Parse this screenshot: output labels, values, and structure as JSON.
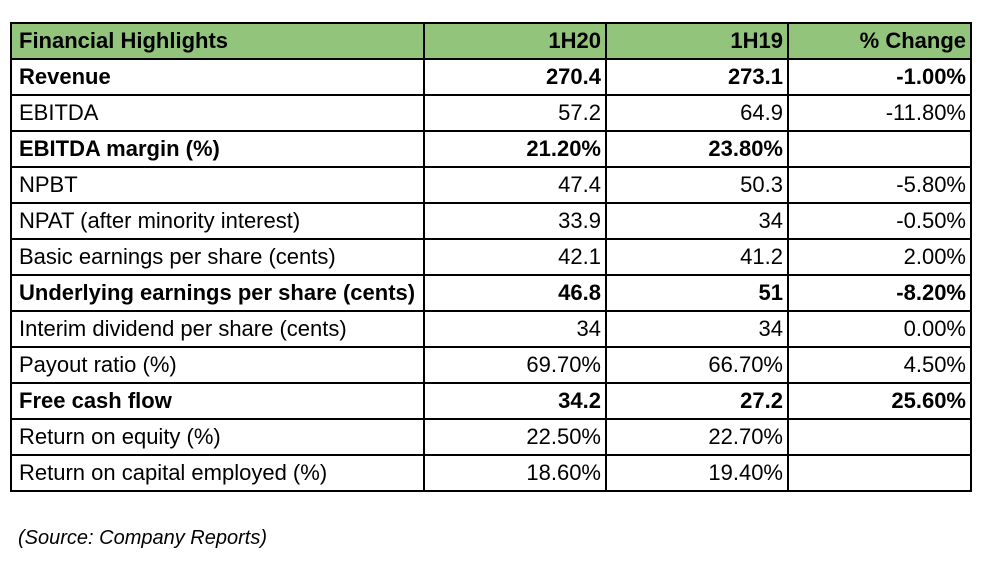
{
  "table": {
    "headers": [
      "Financial Highlights",
      "1H20",
      "1H19",
      "% Change"
    ],
    "header_color": "#92c47c",
    "rows": [
      {
        "label": "Revenue",
        "h20": "270.4",
        "h19": "273.1",
        "change": "-1.00%",
        "bold": true
      },
      {
        "label": "EBITDA",
        "h20": "57.2",
        "h19": "64.9",
        "change": "-11.80%",
        "bold": false
      },
      {
        "label": "EBITDA margin (%)",
        "h20": "21.20%",
        "h19": "23.80%",
        "change": "",
        "bold": true
      },
      {
        "label": "NPBT",
        "h20": "47.4",
        "h19": "50.3",
        "change": "-5.80%",
        "bold": false
      },
      {
        "label": "NPAT (after minority interest)",
        "h20": "33.9",
        "h19": "34",
        "change": "-0.50%",
        "bold": false
      },
      {
        "label": "Basic earnings per share (cents)",
        "h20": "42.1",
        "h19": "41.2",
        "change": "2.00%",
        "bold": false
      },
      {
        "label": "Underlying earnings per share (cents)",
        "h20": "46.8",
        "h19": "51",
        "change": "-8.20%",
        "bold": true
      },
      {
        "label": "Interim dividend per share (cents)",
        "h20": "34",
        "h19": "34",
        "change": "0.00%",
        "bold": false
      },
      {
        "label": "Payout ratio (%)",
        "h20": "69.70%",
        "h19": "66.70%",
        "change": "4.50%",
        "bold": false
      },
      {
        "label": "Free cash flow",
        "h20": "34.2",
        "h19": "27.2",
        "change": "25.60%",
        "bold": true
      },
      {
        "label": "Return on equity (%)",
        "h20": "22.50%",
        "h19": "22.70%",
        "change": "",
        "bold": false
      },
      {
        "label": "Return on capital employed (%)",
        "h20": "18.60%",
        "h19": "19.40%",
        "change": "",
        "bold": false
      }
    ]
  },
  "source": "(Source: Company Reports)"
}
